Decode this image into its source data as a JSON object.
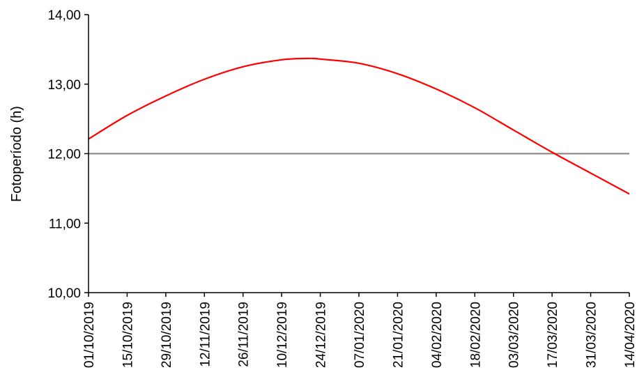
{
  "chart_data": {
    "type": "line",
    "title": "",
    "xlabel": "",
    "ylabel": "Fotoperíodo (h)",
    "ylim": [
      10,
      14
    ],
    "yticks": [
      "10,00",
      "11,00",
      "12,00",
      "13,00",
      "14,00"
    ],
    "xticks": [
      "01/10/2019",
      "15/10/2019",
      "29/10/2019",
      "12/11/2019",
      "26/11/2019",
      "10/12/2019",
      "24/12/2019",
      "07/01/2020",
      "21/01/2020",
      "04/02/2020",
      "18/02/2020",
      "03/03/2020",
      "17/03/2020",
      "31/03/2020",
      "14/04/2020"
    ],
    "grid": false,
    "legend": "none",
    "series": [
      {
        "color": "#ff0000",
        "x": [
          "01/10/2019",
          "15/10/2019",
          "29/10/2019",
          "12/11/2019",
          "26/11/2019",
          "10/12/2019",
          "20/12/2019",
          "24/12/2019",
          "07/01/2020",
          "21/01/2020",
          "04/02/2020",
          "18/02/2020",
          "03/03/2020",
          "17/03/2020",
          "31/03/2020",
          "14/04/2020"
        ],
        "y": [
          12.21,
          12.55,
          12.83,
          13.07,
          13.25,
          13.35,
          13.37,
          13.36,
          13.3,
          13.15,
          12.93,
          12.66,
          12.34,
          12.02,
          11.72,
          11.42
        ]
      }
    ],
    "reference_lines": [
      {
        "y": 12.0,
        "color": "#808080"
      }
    ]
  }
}
